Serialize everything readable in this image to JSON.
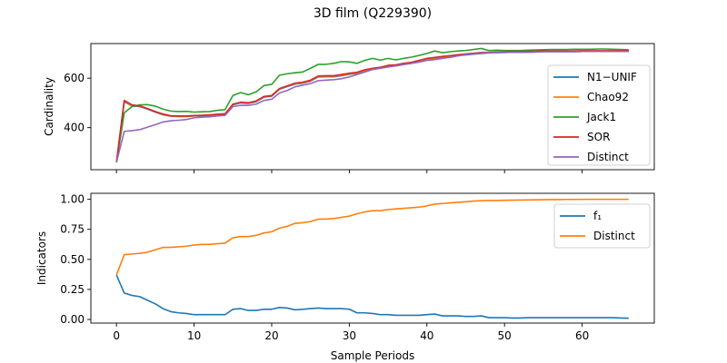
{
  "title": "3D film (Q229390)",
  "xlabel": "Sample Periods",
  "chart_data": [
    {
      "type": "line",
      "ylabel": "Cardinality",
      "xlim": [
        -3.3,
        69.3
      ],
      "ylim": [
        230,
        740
      ],
      "xticks": [
        0,
        10,
        20,
        30,
        40,
        50,
        60
      ],
      "yticks": [
        400,
        600
      ],
      "legend_position": "right",
      "x": [
        0,
        1,
        2,
        3,
        4,
        5,
        6,
        7,
        8,
        9,
        10,
        11,
        12,
        13,
        14,
        15,
        16,
        17,
        18,
        19,
        20,
        21,
        22,
        23,
        24,
        25,
        26,
        27,
        28,
        29,
        30,
        31,
        32,
        33,
        34,
        35,
        36,
        37,
        38,
        39,
        40,
        41,
        42,
        43,
        44,
        45,
        46,
        47,
        48,
        49,
        50,
        51,
        52,
        53,
        54,
        55,
        56,
        57,
        58,
        59,
        60,
        61,
        62,
        63,
        64,
        65,
        66
      ],
      "series": [
        {
          "name": "N1−UNIF",
          "color": "#1f77b4",
          "values": [
            260,
            505,
            488,
            485,
            475,
            463,
            452,
            446,
            445,
            445,
            447,
            448,
            449,
            452,
            455,
            492,
            500,
            498,
            505,
            523,
            527,
            555,
            566,
            576,
            580,
            588,
            605,
            606,
            606,
            610,
            616,
            620,
            630,
            636,
            640,
            648,
            650,
            656,
            660,
            668,
            676,
            680,
            684,
            687,
            691,
            694,
            697,
            700,
            702,
            703,
            704,
            705,
            705,
            705,
            706,
            707,
            707,
            707,
            707,
            707,
            708,
            708,
            708,
            708,
            708,
            708,
            708
          ]
        },
        {
          "name": "Chao92",
          "color": "#ff7f0e",
          "values": [
            260,
            508,
            490,
            487,
            477,
            465,
            454,
            447,
            446,
            446,
            448,
            450,
            451,
            454,
            457,
            494,
            502,
            500,
            507,
            525,
            529,
            557,
            568,
            578,
            582,
            590,
            607,
            608,
            608,
            612,
            618,
            622,
            632,
            638,
            642,
            650,
            652,
            658,
            662,
            670,
            678,
            682,
            686,
            689,
            693,
            696,
            699,
            702,
            703,
            704,
            705,
            706,
            706,
            706,
            707,
            708,
            708,
            708,
            708,
            708,
            709,
            709,
            709,
            709,
            709,
            709,
            709
          ]
        },
        {
          "name": "Jack1",
          "color": "#2ca02c",
          "values": [
            260,
            460,
            485,
            492,
            493,
            487,
            475,
            467,
            465,
            466,
            463,
            464,
            465,
            470,
            473,
            530,
            542,
            533,
            545,
            570,
            575,
            612,
            618,
            622,
            625,
            640,
            656,
            656,
            660,
            667,
            666,
            660,
            672,
            680,
            673,
            680,
            674,
            680,
            685,
            692,
            700,
            710,
            703,
            707,
            710,
            712,
            716,
            720,
            712,
            713,
            712,
            712,
            712,
            713,
            714,
            715,
            716,
            716,
            716,
            717,
            717,
            717,
            718,
            718,
            717,
            716,
            715
          ]
        },
        {
          "name": "SOR",
          "color": "#d62728",
          "values": [
            260,
            510,
            492,
            488,
            477,
            465,
            455,
            448,
            447,
            447,
            449,
            450,
            452,
            454,
            456,
            495,
            503,
            501,
            508,
            526,
            530,
            558,
            569,
            580,
            584,
            592,
            609,
            610,
            610,
            615,
            620,
            624,
            634,
            640,
            644,
            652,
            654,
            660,
            664,
            672,
            680,
            684,
            688,
            691,
            695,
            698,
            701,
            704,
            705,
            706,
            707,
            708,
            708,
            708,
            709,
            710,
            710,
            710,
            710,
            710,
            711,
            711,
            711,
            711,
            711,
            711,
            711
          ]
        },
        {
          "name": "Distinct",
          "color": "#9467bd",
          "values": [
            260,
            385,
            388,
            392,
            402,
            412,
            423,
            428,
            430,
            433,
            440,
            442,
            444,
            447,
            450,
            485,
            490,
            490,
            495,
            510,
            515,
            540,
            550,
            565,
            572,
            578,
            590,
            592,
            594,
            598,
            605,
            615,
            625,
            635,
            640,
            645,
            650,
            655,
            660,
            665,
            672,
            675,
            680,
            684,
            690,
            695,
            698,
            702,
            703,
            704,
            704,
            705,
            705,
            705,
            706,
            707,
            707,
            707,
            707,
            707,
            708,
            708,
            708,
            708,
            708,
            708,
            708
          ]
        }
      ]
    },
    {
      "type": "line",
      "ylabel": "Indicators",
      "xlim": [
        -3.3,
        69.3
      ],
      "ylim": [
        -0.03,
        1.05
      ],
      "xticks": [
        0,
        10,
        20,
        30,
        40,
        50,
        60
      ],
      "xtick_labels": [
        "0",
        "10",
        "20",
        "30",
        "40",
        "50",
        "60"
      ],
      "yticks": [
        0.0,
        0.25,
        0.5,
        0.75,
        1.0
      ],
      "ytick_labels": [
        "0.00",
        "0.25",
        "0.50",
        "0.75",
        "1.00"
      ],
      "legend_position": "top-right",
      "x": [
        0,
        1,
        2,
        3,
        4,
        5,
        6,
        7,
        8,
        9,
        10,
        11,
        12,
        13,
        14,
        15,
        16,
        17,
        18,
        19,
        20,
        21,
        22,
        23,
        24,
        25,
        26,
        27,
        28,
        29,
        30,
        31,
        32,
        33,
        34,
        35,
        36,
        37,
        38,
        39,
        40,
        41,
        42,
        43,
        44,
        45,
        46,
        47,
        48,
        49,
        50,
        51,
        52,
        53,
        54,
        55,
        56,
        57,
        58,
        59,
        60,
        61,
        62,
        63,
        64,
        65,
        66
      ],
      "series": [
        {
          "name": "f₁",
          "color": "#1f77b4",
          "values": [
            0.37,
            0.22,
            0.2,
            0.19,
            0.16,
            0.13,
            0.09,
            0.065,
            0.055,
            0.05,
            0.04,
            0.04,
            0.04,
            0.04,
            0.04,
            0.085,
            0.09,
            0.075,
            0.075,
            0.085,
            0.085,
            0.1,
            0.095,
            0.08,
            0.085,
            0.09,
            0.095,
            0.09,
            0.09,
            0.09,
            0.085,
            0.055,
            0.055,
            0.05,
            0.04,
            0.04,
            0.035,
            0.035,
            0.035,
            0.035,
            0.04,
            0.045,
            0.03,
            0.03,
            0.03,
            0.025,
            0.025,
            0.03,
            0.015,
            0.015,
            0.015,
            0.012,
            0.012,
            0.015,
            0.015,
            0.015,
            0.015,
            0.015,
            0.015,
            0.015,
            0.015,
            0.015,
            0.015,
            0.015,
            0.015,
            0.012,
            0.01
          ]
        },
        {
          "name": "Distinct",
          "color": "#ff7f0e",
          "values": [
            0.37,
            0.54,
            0.545,
            0.55,
            0.56,
            0.58,
            0.6,
            0.6,
            0.605,
            0.61,
            0.62,
            0.625,
            0.625,
            0.63,
            0.635,
            0.68,
            0.69,
            0.69,
            0.7,
            0.72,
            0.73,
            0.76,
            0.775,
            0.8,
            0.805,
            0.815,
            0.835,
            0.835,
            0.84,
            0.85,
            0.86,
            0.88,
            0.895,
            0.905,
            0.905,
            0.915,
            0.92,
            0.925,
            0.93,
            0.935,
            0.945,
            0.96,
            0.965,
            0.97,
            0.975,
            0.98,
            0.985,
            0.988,
            0.99,
            0.99,
            0.992,
            0.993,
            0.994,
            0.995,
            0.996,
            0.997,
            0.998,
            0.998,
            0.999,
            0.999,
            0.999,
            1.0,
            1.0,
            1.0,
            1.0,
            1.0,
            1.0
          ]
        }
      ]
    }
  ]
}
